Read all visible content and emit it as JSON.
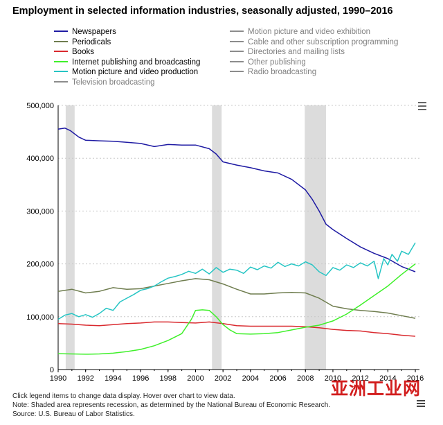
{
  "chart_data": {
    "type": "line",
    "title": "Employment in selected information industries, seasonally adjusted, 1990–2016",
    "xlabel": "",
    "ylabel": "",
    "xlim": [
      1990,
      2016.3
    ],
    "ylim": [
      0,
      500000
    ],
    "grid": true,
    "x_ticks": [
      "1990",
      "1992",
      "1994",
      "1996",
      "1998",
      "2000",
      "2002",
      "2004",
      "2006",
      "2008",
      "2010",
      "2012",
      "2014",
      "2016"
    ],
    "y_ticks": [
      "0",
      "100,000",
      "200,000",
      "300,000",
      "400,000",
      "500,000"
    ],
    "recessions": [
      [
        1990.55,
        1991.2
      ],
      [
        2001.2,
        2001.9
      ],
      [
        2007.95,
        2009.5
      ]
    ],
    "series": [
      {
        "name": "Newspapers",
        "color": "#1e1aa3",
        "active": true,
        "x": [
          1990,
          1990.5,
          1990.9,
          1991.5,
          1992,
          1993,
          1994,
          1995,
          1996,
          1997,
          1998,
          1999,
          2000,
          2001,
          2001.5,
          2002,
          2003,
          2004,
          2005,
          2006,
          2007,
          2008,
          2008.5,
          2009,
          2009.5,
          2010,
          2011,
          2012,
          2013,
          2014,
          2015,
          2016
        ],
        "values": [
          455000,
          457000,
          452000,
          440000,
          434000,
          433000,
          432000,
          430000,
          428000,
          422000,
          426000,
          425000,
          425000,
          418000,
          408000,
          393000,
          387000,
          382000,
          376000,
          372000,
          360000,
          340000,
          322000,
          300000,
          275000,
          265000,
          248000,
          232000,
          220000,
          210000,
          195000,
          185000
        ]
      },
      {
        "name": "Periodicals",
        "color": "#6f7d4f",
        "active": true,
        "x": [
          1990,
          1991,
          1992,
          1993,
          1994,
          1995,
          1996,
          1997,
          1998,
          1999,
          2000,
          2001,
          2002,
          2003,
          2004,
          2005,
          2006,
          2007,
          2008,
          2009,
          2010,
          2011,
          2012,
          2013,
          2014,
          2015,
          2016
        ],
        "values": [
          148000,
          152000,
          145000,
          148000,
          155000,
          152000,
          153000,
          158000,
          163000,
          168000,
          172000,
          170000,
          162000,
          152000,
          143000,
          143000,
          145000,
          146000,
          145000,
          135000,
          120000,
          115000,
          112000,
          110000,
          107000,
          102000,
          97000
        ]
      },
      {
        "name": "Books",
        "color": "#d9292e",
        "active": true,
        "x": [
          1990,
          1991,
          1992,
          1993,
          1994,
          1995,
          1996,
          1997,
          1998,
          1999,
          2000,
          2001,
          2002,
          2003,
          2004,
          2005,
          2006,
          2007,
          2008,
          2009,
          2010,
          2011,
          2012,
          2013,
          2014,
          2015,
          2016
        ],
        "values": [
          87000,
          86000,
          84000,
          83000,
          85000,
          87000,
          88000,
          90000,
          90000,
          89000,
          88000,
          90000,
          87000,
          83000,
          82000,
          82000,
          82000,
          82000,
          81000,
          79000,
          76000,
          74000,
          73000,
          70000,
          68000,
          65000,
          63000
        ]
      },
      {
        "name": "Internet publishing and broadcasting",
        "color": "#3ff02a",
        "active": true,
        "x": [
          1990,
          1991,
          1992,
          1993,
          1994,
          1995,
          1996,
          1997,
          1998,
          1999,
          1999.7,
          2000,
          2000.5,
          2001,
          2001.5,
          2002,
          2002.5,
          2003,
          2004,
          2005,
          2006,
          2007,
          2008,
          2009,
          2010,
          2011,
          2012,
          2013,
          2014,
          2015,
          2016
        ],
        "values": [
          30000,
          29500,
          29000,
          29500,
          31000,
          34000,
          38000,
          45000,
          55000,
          68000,
          95000,
          112000,
          113000,
          112000,
          100000,
          85000,
          75000,
          68000,
          67000,
          68000,
          70000,
          75000,
          80000,
          84000,
          92000,
          105000,
          122000,
          140000,
          158000,
          180000,
          200000
        ]
      },
      {
        "name": "Motion picture and video production",
        "color": "#26c5c4",
        "active": true,
        "x": [
          1990,
          1990.5,
          1991,
          1991.5,
          1992,
          1992.5,
          1993,
          1993.5,
          1994,
          1994.5,
          1995,
          1995.5,
          1996,
          1996.5,
          1997,
          1997.5,
          1998,
          1998.5,
          1999,
          1999.5,
          2000,
          2000.5,
          2001,
          2001.5,
          2002,
          2002.5,
          2003,
          2003.5,
          2004,
          2004.5,
          2005,
          2005.5,
          2006,
          2006.5,
          2007,
          2007.5,
          2008,
          2008.5,
          2009,
          2009.5,
          2010,
          2010.5,
          2011,
          2011.5,
          2012,
          2012.5,
          2013,
          2013.3,
          2013.7,
          2014,
          2014.3,
          2014.7,
          2015,
          2015.5,
          2016
        ],
        "values": [
          95000,
          103000,
          106000,
          100000,
          104000,
          99000,
          106000,
          116000,
          112000,
          128000,
          135000,
          142000,
          150000,
          153000,
          158000,
          166000,
          173000,
          176000,
          180000,
          186000,
          182000,
          190000,
          181000,
          193000,
          184000,
          190000,
          188000,
          182000,
          194000,
          189000,
          196000,
          192000,
          203000,
          195000,
          200000,
          196000,
          204000,
          198000,
          185000,
          178000,
          193000,
          188000,
          198000,
          193000,
          202000,
          196000,
          205000,
          172000,
          210000,
          198000,
          218000,
          205000,
          224000,
          218000,
          240000
        ]
      },
      {
        "name": "Television broadcasting",
        "active": false
      },
      {
        "name": "Motion picture and video exhibition",
        "active": false
      },
      {
        "name": "Cable and other subscription programming",
        "active": false
      },
      {
        "name": "Directories and mailing lists",
        "active": false
      },
      {
        "name": "Other publishing",
        "active": false
      },
      {
        "name": "Radio broadcasting",
        "active": false
      }
    ]
  },
  "footer": {
    "line1": "Click legend items to change data display. Hover over chart to view data.",
    "line2": "Note: Shaded area represents recession, as determined by the National Bureau of Economic Research.",
    "line3": "Source: U.S. Bureau of Labor Statistics."
  },
  "watermark": "亚洲工业网",
  "icons": {
    "menu": "hamburger-menu-icon",
    "corner": "list-icon"
  }
}
